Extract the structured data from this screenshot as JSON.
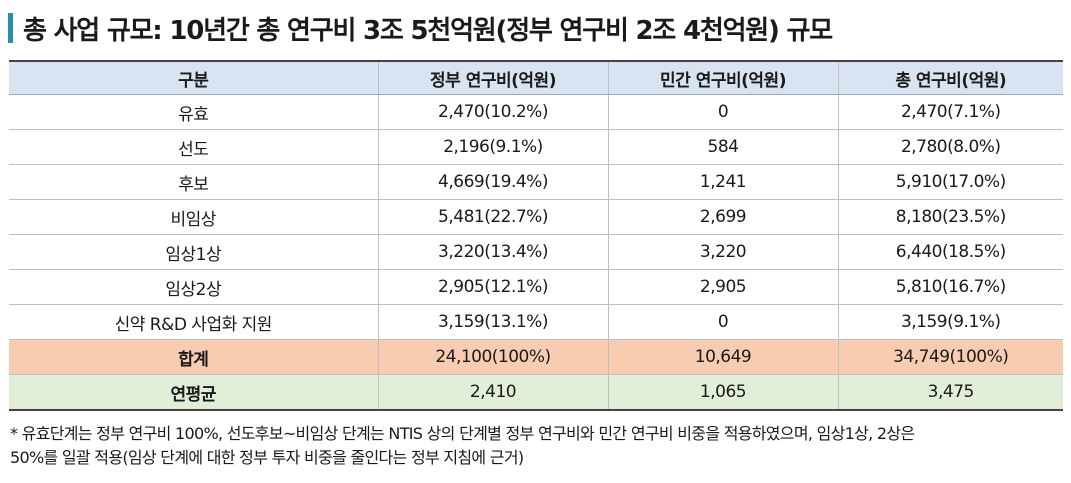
{
  "title": "총 사업 규모: 10년간 총 연구비 3조 5천억원(정부 연구비 2조 4천억원) 규모",
  "table": {
    "headers": [
      "구분",
      "정부 연구비(억원)",
      "민간 연구비(억원)",
      "총 연구비(억원)"
    ],
    "rows": [
      [
        "유효",
        "2,470(10.2%)",
        "0",
        "2,470(7.1%)"
      ],
      [
        "선도",
        "2,196(9.1%)",
        "584",
        "2,780(8.0%)"
      ],
      [
        "후보",
        "4,669(19.4%)",
        "1,241",
        "5,910(17.0%)"
      ],
      [
        "비임상",
        "5,481(22.7%)",
        "2,699",
        "8,180(23.5%)"
      ],
      [
        "임상1상",
        "3,220(13.4%)",
        "3,220",
        "6,440(18.5%)"
      ],
      [
        "임상2상",
        "2,905(12.1%)",
        "2,905",
        "5,810(16.7%)"
      ],
      [
        "신약 R&D 사업화 지원",
        "3,159(13.1%)",
        "0",
        "3,159(9.1%)"
      ]
    ],
    "sum_row": [
      "합계",
      "24,100(100%)",
      "10,649",
      "34,749(100%)"
    ],
    "avg_row": [
      "연평균",
      "2,410",
      "1,065",
      "3,475"
    ]
  },
  "footnote": {
    "line1": "* 유효단계는 정부 연구비 100%, 선도후보~비임상 단계는 NTIS 상의 단계별 정부 연구비와 민간 연구비 비중을 적용하였으며, 임상1상, 2상은",
    "line2": "50%를 일괄 적용(임상 단계에 대한 정부 투자 비중을 줄인다는 정부 지침에 근거)"
  },
  "colors": {
    "title_accent": "#2a8fa8",
    "header_bg": "#d9e4f2",
    "sum_bg": "#f8ccb0",
    "avg_bg": "#e1efd8"
  }
}
